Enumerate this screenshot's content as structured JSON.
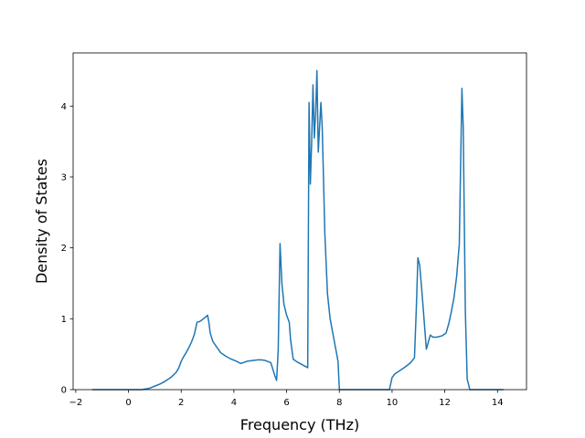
{
  "chart_data": {
    "type": "line",
    "title": "",
    "xlabel": "Frequency (THz)",
    "ylabel": "Density of States",
    "xlim": [
      -2.1,
      15.1
    ],
    "ylim": [
      0,
      4.75
    ],
    "xticks": [
      -2,
      0,
      2,
      4,
      6,
      8,
      10,
      12,
      14
    ],
    "xtick_labels": [
      "−2",
      "0",
      "2",
      "4",
      "6",
      "8",
      "10",
      "12",
      "14"
    ],
    "yticks": [
      0,
      1,
      2,
      3,
      4
    ],
    "ytick_labels": [
      "0",
      "1",
      "2",
      "3",
      "4"
    ],
    "grid": false,
    "legend": "none",
    "line_color": "#1f77b4",
    "series": [
      {
        "x": [
          -1.35,
          0.0,
          0.5,
          0.8,
          1.0,
          1.2,
          1.4,
          1.6,
          1.8,
          1.9,
          2.0,
          2.1,
          2.2,
          2.3,
          2.4,
          2.5,
          2.6,
          2.7,
          2.85,
          3.0,
          3.05,
          3.1,
          3.2,
          3.35,
          3.5,
          3.7,
          3.9,
          4.1,
          4.25,
          4.35,
          4.5,
          4.7,
          4.9,
          5.05,
          5.2,
          5.4,
          5.55,
          5.62,
          5.68,
          5.75,
          5.82,
          5.9,
          6.0,
          6.1,
          6.15,
          6.25,
          6.4,
          6.6,
          6.8,
          6.85,
          6.9,
          6.95,
          7.0,
          7.05,
          7.1,
          7.15,
          7.2,
          7.25,
          7.3,
          7.35,
          7.45,
          7.55,
          7.65,
          7.8,
          7.95,
          8.0,
          8.2,
          9.0,
          9.9,
          10.0,
          10.1,
          10.3,
          10.5,
          10.7,
          10.85,
          10.92,
          10.98,
          11.05,
          11.15,
          11.3,
          11.45,
          11.55,
          11.7,
          11.9,
          12.05,
          12.15,
          12.25,
          12.35,
          12.45,
          12.55,
          12.65,
          12.7,
          12.78,
          12.85,
          12.95,
          13.5,
          14.2
        ],
        "y": [
          0.0,
          0.0,
          0.0,
          0.02,
          0.05,
          0.08,
          0.12,
          0.17,
          0.24,
          0.3,
          0.4,
          0.47,
          0.53,
          0.6,
          0.68,
          0.78,
          0.95,
          0.96,
          1.0,
          1.05,
          0.95,
          0.8,
          0.68,
          0.6,
          0.52,
          0.47,
          0.43,
          0.4,
          0.37,
          0.38,
          0.4,
          0.41,
          0.42,
          0.42,
          0.41,
          0.38,
          0.2,
          0.13,
          0.55,
          2.06,
          1.5,
          1.2,
          1.05,
          0.95,
          0.7,
          0.43,
          0.39,
          0.35,
          0.31,
          4.05,
          2.9,
          3.5,
          4.3,
          3.55,
          3.9,
          4.5,
          3.35,
          3.7,
          4.05,
          3.7,
          2.2,
          1.35,
          1.0,
          0.7,
          0.4,
          0.0,
          0.0,
          0.0,
          0.0,
          0.17,
          0.22,
          0.27,
          0.32,
          0.38,
          0.45,
          1.15,
          1.86,
          1.75,
          1.3,
          0.57,
          0.77,
          0.74,
          0.74,
          0.76,
          0.8,
          0.93,
          1.1,
          1.3,
          1.6,
          2.05,
          4.25,
          3.7,
          1.1,
          0.15,
          0.0,
          0.0,
          0.0
        ]
      }
    ]
  }
}
